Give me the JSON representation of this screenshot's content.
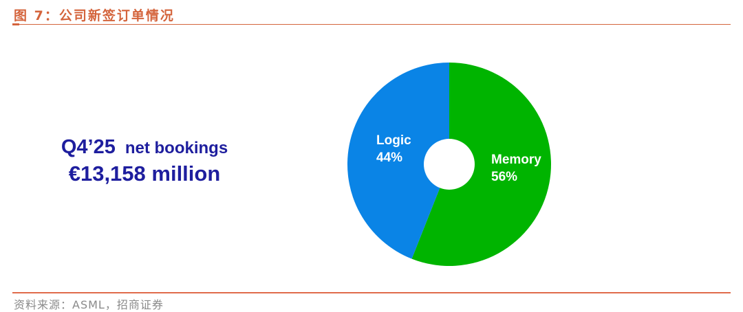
{
  "figure_title": "图 7：公司新签订单情况",
  "source": "资料来源：ASML，招商证券",
  "headline": {
    "period": "Q4’25",
    "metric": "net bookings",
    "value": "€13,158 million"
  },
  "chart_data": {
    "type": "pie",
    "donut": true,
    "start": "top",
    "direction": "clockwise",
    "slices": [
      {
        "label": "Memory",
        "value": 56,
        "value_label": "56%",
        "color": "#00b400"
      },
      {
        "label": "Logic",
        "value": 44,
        "value_label": "44%",
        "color": "#0a84e6"
      }
    ],
    "legend": "none"
  },
  "colors": {
    "accent": "#d4643c",
    "headline": "#1e1e9e"
  }
}
